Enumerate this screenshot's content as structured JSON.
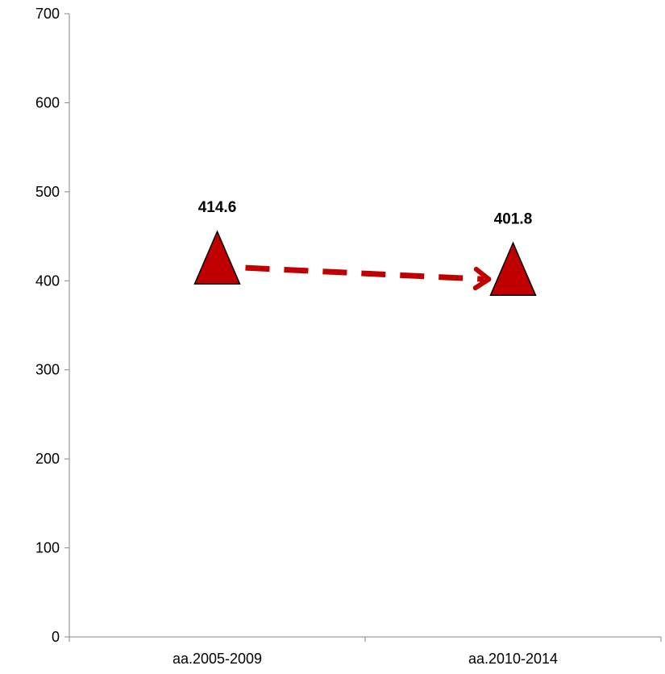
{
  "chart_data": {
    "type": "line",
    "title": "",
    "xlabel": "",
    "ylabel": "",
    "categories": [
      "aa.2005-2009",
      "aa.2010-2014"
    ],
    "values": [
      414.6,
      401.8
    ],
    "data_labels": [
      "414.6",
      "401.8"
    ],
    "ylim": [
      0,
      700
    ],
    "yticks": [
      0,
      100,
      200,
      300,
      400,
      500,
      600,
      700
    ],
    "ytick_labels": [
      "0",
      "100",
      "200",
      "300",
      "400",
      "500",
      "600",
      "700"
    ],
    "marker": "triangle",
    "marker_fill": "#C00000",
    "marker_stroke": "#000000",
    "trend_arrow_color": "#C00000",
    "trend_arrow_style": "dashed",
    "grid": false,
    "legend": "none"
  }
}
